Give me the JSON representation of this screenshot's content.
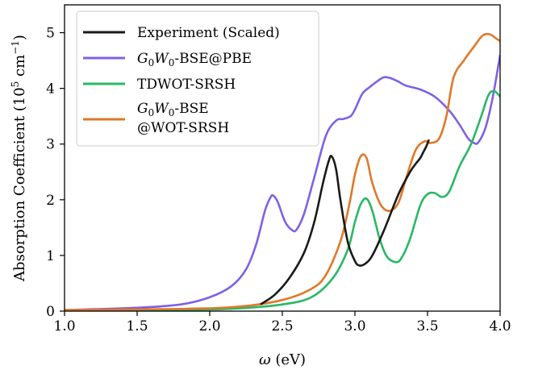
{
  "chart_data": {
    "type": "line",
    "xlabel_symbol": "ω",
    "xlabel_unit": "(eV)",
    "ylabel_main": "Absorption Coefficient (10",
    "ylabel_exp": "5",
    "ylabel_unit": " cm",
    "ylabel_unit_exp": "−1",
    "ylabel_close": ")",
    "xlim": [
      1.0,
      4.0
    ],
    "ylim": [
      0,
      5.5
    ],
    "xticks": [
      "1.0",
      "1.5",
      "2.0",
      "2.5",
      "3.0",
      "3.5",
      "4.0"
    ],
    "yticks": [
      "0",
      "1",
      "2",
      "3",
      "4",
      "5"
    ],
    "grid": false,
    "legend_position": "top-left",
    "series": [
      {
        "name": "Experiment (Scaled)",
        "color": "#1a1a1a",
        "x": [
          2.35,
          2.45,
          2.55,
          2.65,
          2.72,
          2.78,
          2.82,
          2.84,
          2.87,
          2.9,
          2.95,
          3.0,
          3.03,
          3.07,
          3.12,
          3.2,
          3.3,
          3.38,
          3.42,
          3.45,
          3.47,
          3.49,
          3.51
        ],
        "y": [
          0.12,
          0.3,
          0.6,
          1.05,
          1.6,
          2.3,
          2.7,
          2.78,
          2.55,
          2.0,
          1.25,
          0.9,
          0.82,
          0.85,
          1.0,
          1.45,
          2.1,
          2.5,
          2.65,
          2.75,
          2.85,
          2.95,
          3.08
        ]
      },
      {
        "name": "G0W0-BSE@PBE",
        "label_parts": [
          "G",
          "0",
          "W",
          "0",
          "-BSE@PBE"
        ],
        "color": "#8060e6",
        "x": [
          1.0,
          1.5,
          1.8,
          2.0,
          2.15,
          2.25,
          2.32,
          2.38,
          2.42,
          2.44,
          2.47,
          2.52,
          2.57,
          2.6,
          2.65,
          2.72,
          2.8,
          2.87,
          2.92,
          2.97,
          3.0,
          3.05,
          3.1,
          3.15,
          3.2,
          3.25,
          3.3,
          3.35,
          3.45,
          3.55,
          3.65,
          3.72,
          3.78,
          3.82,
          3.85,
          3.9,
          3.95,
          4.0
        ],
        "y": [
          0.02,
          0.06,
          0.12,
          0.25,
          0.45,
          0.75,
          1.2,
          1.8,
          2.05,
          2.07,
          1.95,
          1.6,
          1.45,
          1.47,
          1.75,
          2.4,
          3.15,
          3.42,
          3.45,
          3.5,
          3.62,
          3.9,
          4.02,
          4.12,
          4.2,
          4.18,
          4.12,
          4.05,
          3.98,
          3.85,
          3.6,
          3.35,
          3.1,
          3.02,
          3.03,
          3.3,
          3.85,
          4.6
        ]
      },
      {
        "name": "TDWOT-SRSH",
        "color": "#2ab865",
        "x": [
          1.0,
          1.8,
          2.2,
          2.5,
          2.7,
          2.85,
          2.95,
          3.0,
          3.04,
          3.08,
          3.12,
          3.17,
          3.22,
          3.28,
          3.32,
          3.38,
          3.45,
          3.5,
          3.55,
          3.6,
          3.65,
          3.72,
          3.8,
          3.87,
          3.92,
          3.96,
          4.0
        ],
        "y": [
          0.01,
          0.02,
          0.05,
          0.12,
          0.25,
          0.6,
          1.1,
          1.6,
          1.92,
          2.02,
          1.8,
          1.3,
          0.98,
          0.88,
          0.95,
          1.3,
          1.9,
          2.1,
          2.12,
          2.05,
          2.15,
          2.6,
          3.0,
          3.5,
          3.88,
          3.95,
          3.85
        ]
      },
      {
        "name": "G0W0-BSE @WOT-SRSH",
        "label_parts": [
          "G",
          "0",
          "W",
          "0",
          "-BSE",
          "@WOT-SRSH"
        ],
        "color": "#e07828",
        "x": [
          1.0,
          1.8,
          2.2,
          2.5,
          2.7,
          2.8,
          2.9,
          2.96,
          3.0,
          3.04,
          3.08,
          3.12,
          3.18,
          3.24,
          3.3,
          3.36,
          3.42,
          3.48,
          3.52,
          3.58,
          3.63,
          3.68,
          3.75,
          3.82,
          3.88,
          3.93,
          3.97,
          4.0
        ],
        "y": [
          0.02,
          0.04,
          0.08,
          0.2,
          0.4,
          0.65,
          1.25,
          1.9,
          2.45,
          2.78,
          2.75,
          2.3,
          1.9,
          1.8,
          1.95,
          2.45,
          2.9,
          3.05,
          3.02,
          3.1,
          3.5,
          4.2,
          4.5,
          4.75,
          4.95,
          4.97,
          4.9,
          4.85
        ]
      }
    ]
  }
}
